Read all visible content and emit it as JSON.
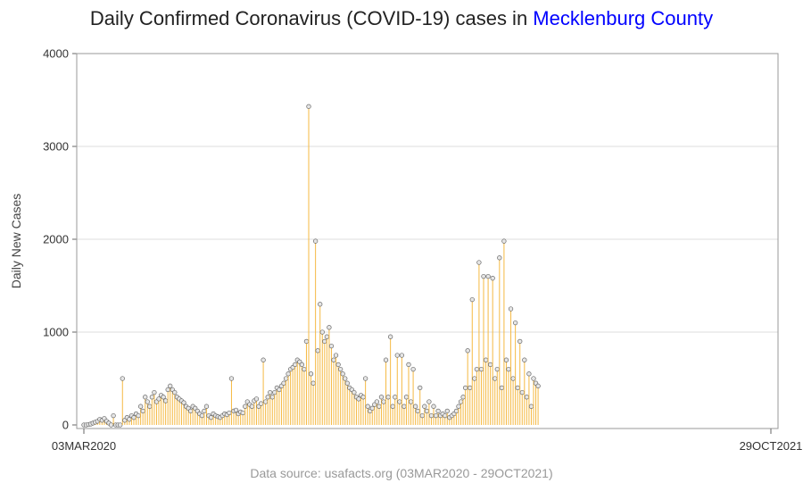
{
  "title": {
    "prefix": "Daily Confirmed Coronavirus (COVID-19) cases in ",
    "county": "Mecklenburg County"
  },
  "source": "Data source: usafacts.org (03MAR2020 - 29OCT2021)",
  "chart_data": {
    "type": "line",
    "title": "Daily Confirmed Coronavirus (COVID-19) cases in Mecklenburg County",
    "ylabel": "Daily New Cases",
    "xlabel": "",
    "x_tick_labels": [
      "03MAR2020",
      "29OCT2021"
    ],
    "x_range": [
      "2020-03-03",
      "2021-10-29"
    ],
    "ylim": [
      0,
      4000
    ],
    "y_ticks": [
      0,
      1000,
      2000,
      3000,
      4000
    ],
    "grid": true,
    "marker": "lollipop",
    "colors": {
      "stem": "#f5b942",
      "marker_fill": "#e6e6e6",
      "marker_edge": "#666666",
      "grid": "#dddddd",
      "frame": "#999999",
      "county": "#0000ff"
    },
    "series": [
      {
        "x_start": "2020-03-03",
        "x_step_days": 2,
        "values": [
          0,
          0,
          5,
          10,
          20,
          30,
          40,
          60,
          50,
          70,
          40,
          20,
          0,
          100,
          0,
          0,
          0,
          500,
          50,
          80,
          60,
          100,
          80,
          120,
          100,
          200,
          150,
          300,
          250,
          200,
          300,
          350,
          250,
          280,
          320,
          300,
          260,
          380,
          420,
          380,
          350,
          300,
          280,
          260,
          240,
          200,
          180,
          150,
          200,
          180,
          150,
          120,
          100,
          150,
          200,
          100,
          80,
          120,
          100,
          90,
          80,
          100,
          120,
          110,
          130,
          500,
          150,
          160,
          120,
          140,
          130,
          200,
          250,
          220,
          200,
          260,
          280,
          200,
          230,
          700,
          250,
          300,
          350,
          300,
          350,
          400,
          380,
          420,
          450,
          500,
          550,
          600,
          620,
          650,
          700,
          680,
          650,
          600,
          900,
          3430,
          550,
          450,
          1980,
          800,
          1300,
          1000,
          900,
          950,
          1050,
          850,
          700,
          750,
          650,
          600,
          550,
          500,
          450,
          400,
          380,
          350,
          300,
          280,
          320,
          300,
          500,
          200,
          150,
          180,
          220,
          250,
          200,
          300,
          250,
          700,
          300,
          950,
          200,
          300,
          750,
          250,
          750,
          200,
          300,
          650,
          250,
          600,
          200,
          150,
          400,
          100,
          200,
          150,
          250,
          100,
          200,
          100,
          150,
          100,
          120,
          100,
          150,
          80,
          100,
          120,
          150,
          200,
          250,
          300,
          400,
          800,
          400,
          1350,
          500,
          600,
          1750,
          600,
          1600,
          700,
          1600,
          650,
          1580,
          500,
          600,
          1800,
          400,
          1980,
          700,
          600,
          1250,
          500,
          1100,
          400,
          900,
          350,
          700,
          300,
          550,
          200,
          500,
          450,
          420
        ]
      }
    ]
  }
}
